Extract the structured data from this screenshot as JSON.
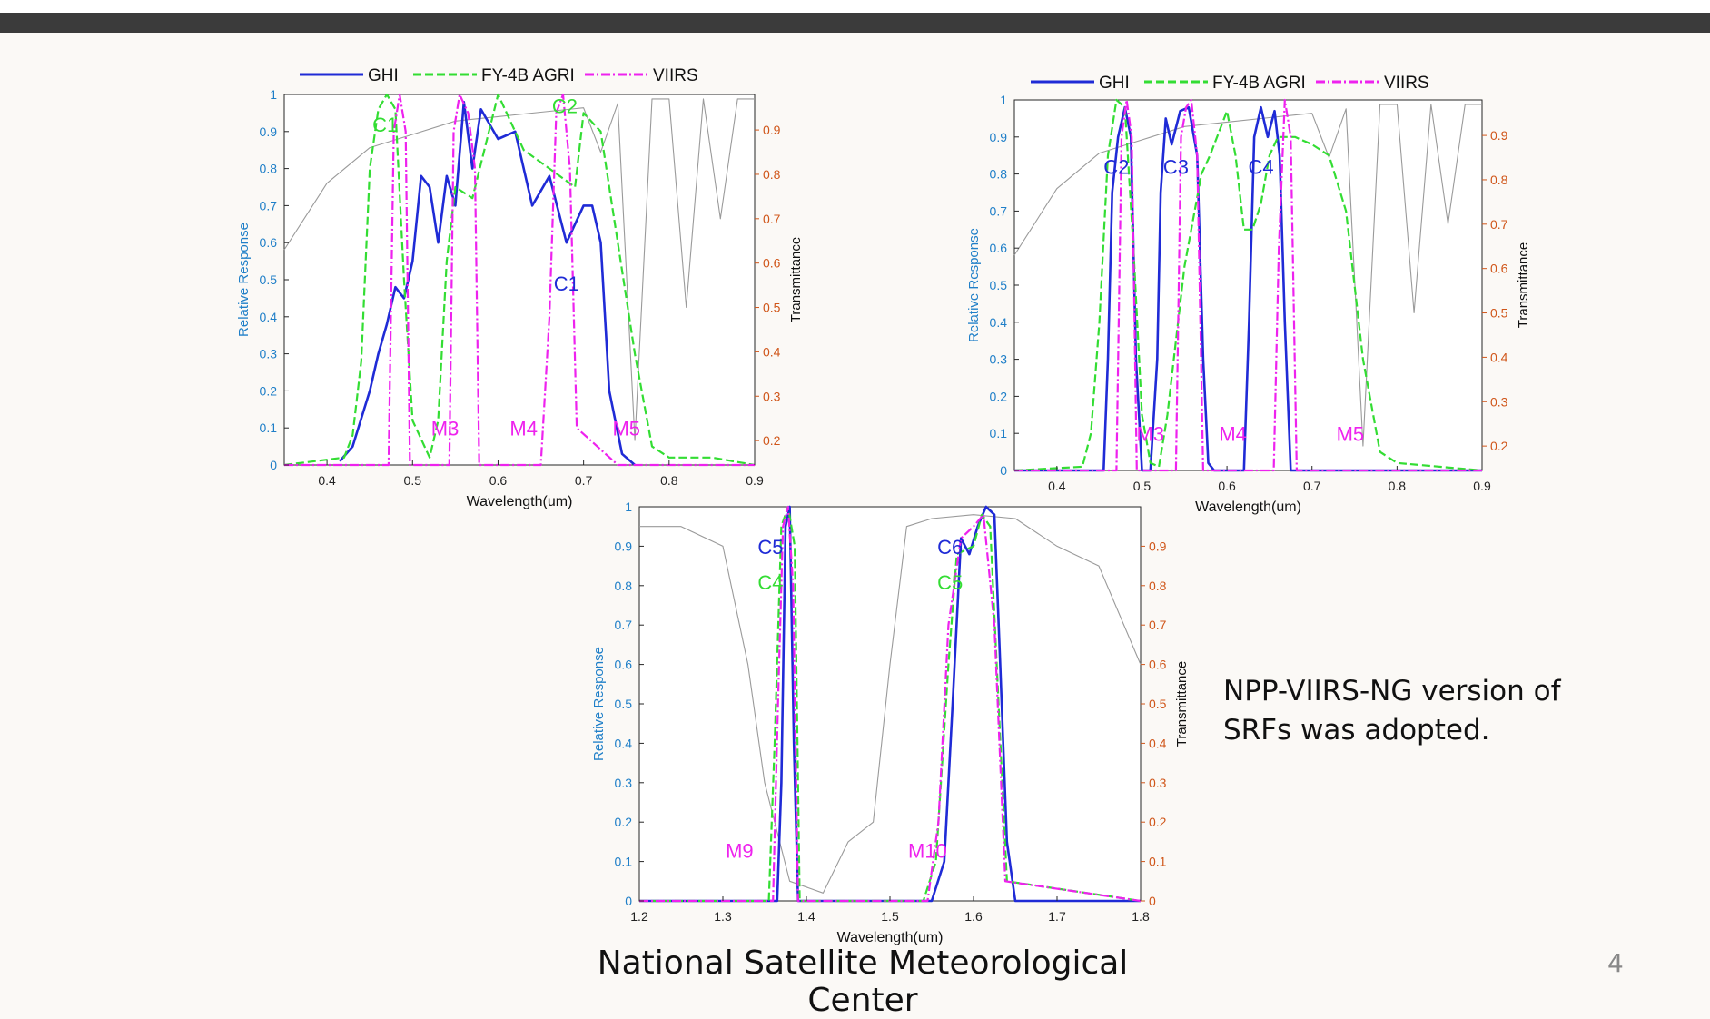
{
  "slide": {
    "note": "NPP-VIIRS-NG version of SRFs was adopted.",
    "footer": "National Satellite Meteorological Center",
    "page_number": "4"
  },
  "colors": {
    "ghi": "#1f2bd6",
    "agri": "#33dd33",
    "viirs": "#ee22ee",
    "trans": "#9a9a9a",
    "left_axis": "#1f7fc8",
    "right_axis": "#d0561a"
  },
  "chart_data": [
    {
      "type": "line",
      "xlabel": "Wavelength(um)",
      "ylabel": "Relative Response",
      "y2label": "Transmittance",
      "xlim": [
        0.35,
        0.9
      ],
      "ylim": [
        0,
        1
      ],
      "y2lim": [
        0.145,
        0.98
      ],
      "xticks": [
        "0.4",
        "0.5",
        "0.6",
        "0.7",
        "0.8",
        "0.9"
      ],
      "yticks": [
        "0",
        "0.1",
        "0.2",
        "0.3",
        "0.4",
        "0.5",
        "0.6",
        "0.7",
        "0.8",
        "0.9",
        "1"
      ],
      "y2ticks": [
        "0.2",
        "0.3",
        "0.4",
        "0.5",
        "0.6",
        "0.7",
        "0.8",
        "0.9"
      ],
      "legend": [
        "GHI",
        "FY-4B AGRI",
        "VIIRS"
      ],
      "series": [
        {
          "name": "GHI",
          "style": "solid",
          "x": [
            0.415,
            0.43,
            0.45,
            0.46,
            0.47,
            0.48,
            0.49,
            0.5,
            0.51,
            0.52,
            0.53,
            0.54,
            0.55,
            0.56,
            0.57,
            0.58,
            0.6,
            0.62,
            0.64,
            0.66,
            0.68,
            0.7,
            0.71,
            0.72,
            0.73,
            0.745,
            0.76
          ],
          "y": [
            0.01,
            0.05,
            0.2,
            0.3,
            0.38,
            0.48,
            0.45,
            0.55,
            0.78,
            0.75,
            0.6,
            0.78,
            0.7,
            0.98,
            0.8,
            0.96,
            0.88,
            0.9,
            0.7,
            0.78,
            0.6,
            0.7,
            0.7,
            0.6,
            0.2,
            0.03,
            0
          ]
        },
        {
          "name": "FY-4B AGRI",
          "style": "dashed",
          "x": [
            0.35,
            0.42,
            0.43,
            0.44,
            0.45,
            0.46,
            0.47,
            0.48,
            0.49,
            0.5,
            0.52,
            0.53,
            0.54,
            0.55,
            0.57,
            0.6,
            0.63,
            0.66,
            0.69,
            0.7,
            0.72,
            0.74,
            0.76,
            0.78,
            0.8,
            0.85,
            0.9
          ],
          "y": [
            0,
            0.02,
            0.08,
            0.28,
            0.8,
            0.96,
            1.0,
            0.96,
            0.5,
            0.12,
            0.02,
            0.12,
            0.55,
            0.75,
            0.72,
            1.0,
            0.85,
            0.8,
            0.75,
            0.95,
            0.9,
            0.6,
            0.3,
            0.05,
            0.02,
            0.02,
            0
          ]
        },
        {
          "name": "VIIRS",
          "style": "dashdot",
          "x": [
            0.35,
            0.472,
            0.478,
            0.485,
            0.492,
            0.497,
            0.52,
            0.543,
            0.548,
            0.555,
            0.565,
            0.573,
            0.578,
            0.65,
            0.66,
            0.668,
            0.676,
            0.684,
            0.692,
            0.74,
            0.9
          ],
          "y": [
            0,
            0,
            0.9,
            1.0,
            0.9,
            0,
            0,
            0,
            0.9,
            1.0,
            0.95,
            0.8,
            0,
            0,
            0.4,
            0.95,
            1.0,
            0.8,
            0.1,
            0,
            0
          ]
        },
        {
          "name": "Transmittance",
          "style": "thin",
          "axis": "y2",
          "x": [
            0.35,
            0.4,
            0.45,
            0.5,
            0.55,
            0.6,
            0.65,
            0.7,
            0.72,
            0.74,
            0.76,
            0.78,
            0.8,
            0.82,
            0.84,
            0.86,
            0.88,
            0.9
          ],
          "y": [
            0.63,
            0.78,
            0.86,
            0.89,
            0.92,
            0.93,
            0.94,
            0.95,
            0.85,
            0.96,
            0.2,
            0.97,
            0.97,
            0.5,
            0.97,
            0.7,
            0.97,
            0.97
          ]
        }
      ],
      "annotations": [
        {
          "text": "C1",
          "color": "ghi",
          "x": 0.68,
          "y": 0.47
        },
        {
          "text": "C1",
          "color": "agri",
          "x": 0.468,
          "y": 0.9
        },
        {
          "text": "C2",
          "color": "agri",
          "x": 0.678,
          "y": 0.95
        },
        {
          "text": "M3",
          "color": "viirs",
          "x": 0.538,
          "y": 0.08
        },
        {
          "text": "M4",
          "color": "viirs",
          "x": 0.63,
          "y": 0.08
        },
        {
          "text": "M5",
          "color": "viirs",
          "x": 0.75,
          "y": 0.08
        }
      ]
    },
    {
      "type": "line",
      "xlabel": "Wavelength(um)",
      "ylabel": "Relative Response",
      "y2label": "Transmittance",
      "xlim": [
        0.35,
        0.9
      ],
      "ylim": [
        0,
        1
      ],
      "y2lim": [
        0.145,
        0.98
      ],
      "xticks": [
        "0.4",
        "0.5",
        "0.6",
        "0.7",
        "0.8",
        "0.9"
      ],
      "yticks": [
        "0",
        "0.1",
        "0.2",
        "0.3",
        "0.4",
        "0.5",
        "0.6",
        "0.7",
        "0.8",
        "0.9",
        "1"
      ],
      "y2ticks": [
        "0.2",
        "0.3",
        "0.4",
        "0.5",
        "0.6",
        "0.7",
        "0.8",
        "0.9"
      ],
      "legend": [
        "GHI",
        "FY-4B AGRI",
        "VIIRS"
      ],
      "series": [
        {
          "name": "GHI",
          "style": "solid",
          "x": [
            0.35,
            0.455,
            0.46,
            0.465,
            0.472,
            0.48,
            0.487,
            0.493,
            0.5,
            0.51,
            0.518,
            0.522,
            0.528,
            0.535,
            0.545,
            0.555,
            0.565,
            0.572,
            0.578,
            0.585,
            0.62,
            0.626,
            0.632,
            0.64,
            0.648,
            0.656,
            0.662,
            0.668,
            0.675,
            0.9
          ],
          "y": [
            0,
            0,
            0.3,
            0.75,
            0.9,
            0.98,
            0.9,
            0.3,
            0,
            0,
            0.3,
            0.75,
            0.95,
            0.88,
            0.97,
            0.98,
            0.85,
            0.3,
            0.02,
            0,
            0,
            0.4,
            0.9,
            0.98,
            0.9,
            0.97,
            0.85,
            0.4,
            0,
            0
          ]
        },
        {
          "name": "FY-4B AGRI",
          "style": "dashed",
          "x": [
            0.35,
            0.43,
            0.44,
            0.45,
            0.46,
            0.47,
            0.48,
            0.49,
            0.5,
            0.51,
            0.52,
            0.53,
            0.55,
            0.57,
            0.58,
            0.6,
            0.61,
            0.62,
            0.63,
            0.64,
            0.65,
            0.66,
            0.68,
            0.7,
            0.72,
            0.74,
            0.76,
            0.78,
            0.8,
            0.9
          ],
          "y": [
            0,
            0.01,
            0.1,
            0.4,
            0.85,
            1.0,
            0.98,
            0.6,
            0.15,
            0.02,
            0.01,
            0.15,
            0.55,
            0.8,
            0.85,
            0.97,
            0.85,
            0.65,
            0.65,
            0.72,
            0.85,
            0.9,
            0.9,
            0.88,
            0.85,
            0.7,
            0.3,
            0.05,
            0.02,
            0
          ]
        },
        {
          "name": "VIIRS",
          "style": "dashdot",
          "x": [
            0.35,
            0.47,
            0.476,
            0.482,
            0.488,
            0.494,
            0.54,
            0.546,
            0.552,
            0.558,
            0.565,
            0.572,
            0.655,
            0.661,
            0.668,
            0.675,
            0.682,
            0.9
          ],
          "y": [
            0,
            0,
            0.9,
            1.0,
            0.9,
            0,
            0,
            0.9,
            0.98,
            1.0,
            0.85,
            0,
            0,
            0.6,
            1.0,
            0.9,
            0,
            0
          ]
        },
        {
          "name": "Transmittance",
          "style": "thin",
          "axis": "y2",
          "x": [
            0.35,
            0.4,
            0.45,
            0.5,
            0.55,
            0.6,
            0.65,
            0.7,
            0.72,
            0.74,
            0.76,
            0.78,
            0.8,
            0.82,
            0.84,
            0.86,
            0.88,
            0.9
          ],
          "y": [
            0.63,
            0.78,
            0.86,
            0.89,
            0.92,
            0.93,
            0.94,
            0.95,
            0.85,
            0.96,
            0.2,
            0.97,
            0.97,
            0.5,
            0.97,
            0.7,
            0.97,
            0.97
          ]
        }
      ],
      "annotations": [
        {
          "text": "C2",
          "color": "ghi",
          "x": 0.47,
          "y": 0.8
        },
        {
          "text": "C3",
          "color": "ghi",
          "x": 0.54,
          "y": 0.8
        },
        {
          "text": "C4",
          "color": "ghi",
          "x": 0.64,
          "y": 0.8
        },
        {
          "text": "M3",
          "color": "viirs",
          "x": 0.51,
          "y": 0.08
        },
        {
          "text": "M4",
          "color": "viirs",
          "x": 0.607,
          "y": 0.08
        },
        {
          "text": "M5",
          "color": "viirs",
          "x": 0.745,
          "y": 0.08
        }
      ]
    },
    {
      "type": "line",
      "xlabel": "Wavelength(um)",
      "ylabel": "Relative Response",
      "y2label": "Transmittance",
      "xlim": [
        1.2,
        1.8
      ],
      "ylim": [
        0,
        1
      ],
      "y2lim": [
        0,
        1
      ],
      "xticks": [
        "1.2",
        "1.3",
        "1.4",
        "1.5",
        "1.6",
        "1.7",
        "1.8"
      ],
      "yticks": [
        "0",
        "0.1",
        "0.2",
        "0.3",
        "0.4",
        "0.5",
        "0.6",
        "0.7",
        "0.8",
        "0.9",
        "1"
      ],
      "y2ticks": [
        "0",
        "0.1",
        "0.2",
        "0.3",
        "0.4",
        "0.5",
        "0.6",
        "0.7",
        "0.8",
        "0.9"
      ],
      "legend": [],
      "series": [
        {
          "name": "GHI",
          "style": "solid",
          "x": [
            1.2,
            1.365,
            1.37,
            1.375,
            1.38,
            1.385,
            1.39,
            1.55,
            1.565,
            1.575,
            1.585,
            1.595,
            1.605,
            1.615,
            1.625,
            1.632,
            1.64,
            1.65,
            1.8
          ],
          "y": [
            0,
            0,
            0.3,
            0.95,
            1.0,
            0.4,
            0,
            0,
            0.1,
            0.5,
            0.92,
            0.88,
            0.95,
            1.0,
            0.98,
            0.6,
            0.15,
            0,
            0
          ]
        },
        {
          "name": "FY-4B AGRI",
          "style": "dashed",
          "x": [
            1.2,
            1.355,
            1.362,
            1.37,
            1.378,
            1.386,
            1.392,
            1.54,
            1.555,
            1.57,
            1.58,
            1.6,
            1.61,
            1.62,
            1.63,
            1.64,
            1.8
          ],
          "y": [
            0,
            0,
            0.4,
            0.95,
            1.0,
            0.9,
            0,
            0,
            0.1,
            0.6,
            0.88,
            0.9,
            0.98,
            0.95,
            0.5,
            0.05,
            0
          ]
        },
        {
          "name": "VIIRS",
          "style": "dashdot",
          "x": [
            1.2,
            1.36,
            1.366,
            1.372,
            1.378,
            1.384,
            1.39,
            1.545,
            1.558,
            1.57,
            1.585,
            1.6,
            1.612,
            1.625,
            1.638,
            1.8
          ],
          "y": [
            0,
            0,
            0.5,
            0.95,
            1.0,
            0.8,
            0,
            0,
            0.2,
            0.7,
            0.92,
            0.95,
            0.98,
            0.7,
            0.05,
            0
          ]
        },
        {
          "name": "Transmittance",
          "style": "thin",
          "axis": "y2",
          "x": [
            1.2,
            1.25,
            1.3,
            1.33,
            1.35,
            1.38,
            1.42,
            1.45,
            1.48,
            1.5,
            1.52,
            1.55,
            1.6,
            1.65,
            1.7,
            1.75,
            1.8
          ],
          "y": [
            0.95,
            0.95,
            0.9,
            0.6,
            0.3,
            0.05,
            0.02,
            0.15,
            0.2,
            0.6,
            0.95,
            0.97,
            0.98,
            0.97,
            0.9,
            0.85,
            0.6
          ]
        }
      ],
      "annotations": [
        {
          "text": "C5",
          "color": "ghi",
          "x": 1.357,
          "y": 0.88
        },
        {
          "text": "C4",
          "color": "agri",
          "x": 1.357,
          "y": 0.79
        },
        {
          "text": "C6",
          "color": "ghi",
          "x": 1.572,
          "y": 0.88
        },
        {
          "text": "C5",
          "color": "agri",
          "x": 1.572,
          "y": 0.79
        },
        {
          "text": "M9",
          "color": "viirs",
          "x": 1.32,
          "y": 0.11
        },
        {
          "text": "M10",
          "color": "viirs",
          "x": 1.545,
          "y": 0.11
        }
      ]
    }
  ]
}
